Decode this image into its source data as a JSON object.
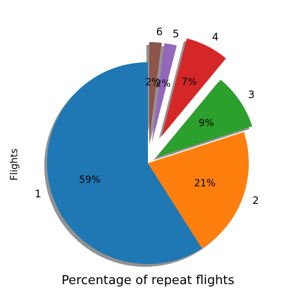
{
  "chart_data": {
    "type": "pie",
    "title": "Percentage of repeat flights",
    "ylabel": "Flights",
    "shadow": true,
    "start_angle_deg": 90,
    "direction": "counterclockwise",
    "slices": [
      {
        "label": "1",
        "value": 59,
        "pct_label": "59%",
        "color": "#1f77b4",
        "explode": 0
      },
      {
        "label": "2",
        "value": 21,
        "pct_label": "21%",
        "color": "#ff7f0e",
        "explode": 0
      },
      {
        "label": "3",
        "value": 9,
        "pct_label": "9%",
        "color": "#2ca02c",
        "explode": 0.1
      },
      {
        "label": "4",
        "value": 7,
        "pct_label": "7%",
        "color": "#d62728",
        "explode": 0.3
      },
      {
        "label": "5",
        "value": 2,
        "pct_label": "2%",
        "color": "#9467bd",
        "explode": 0.2
      },
      {
        "label": "6",
        "value": 2,
        "pct_label": "2%",
        "color": "#8c564b",
        "explode": 0.2
      }
    ]
  }
}
